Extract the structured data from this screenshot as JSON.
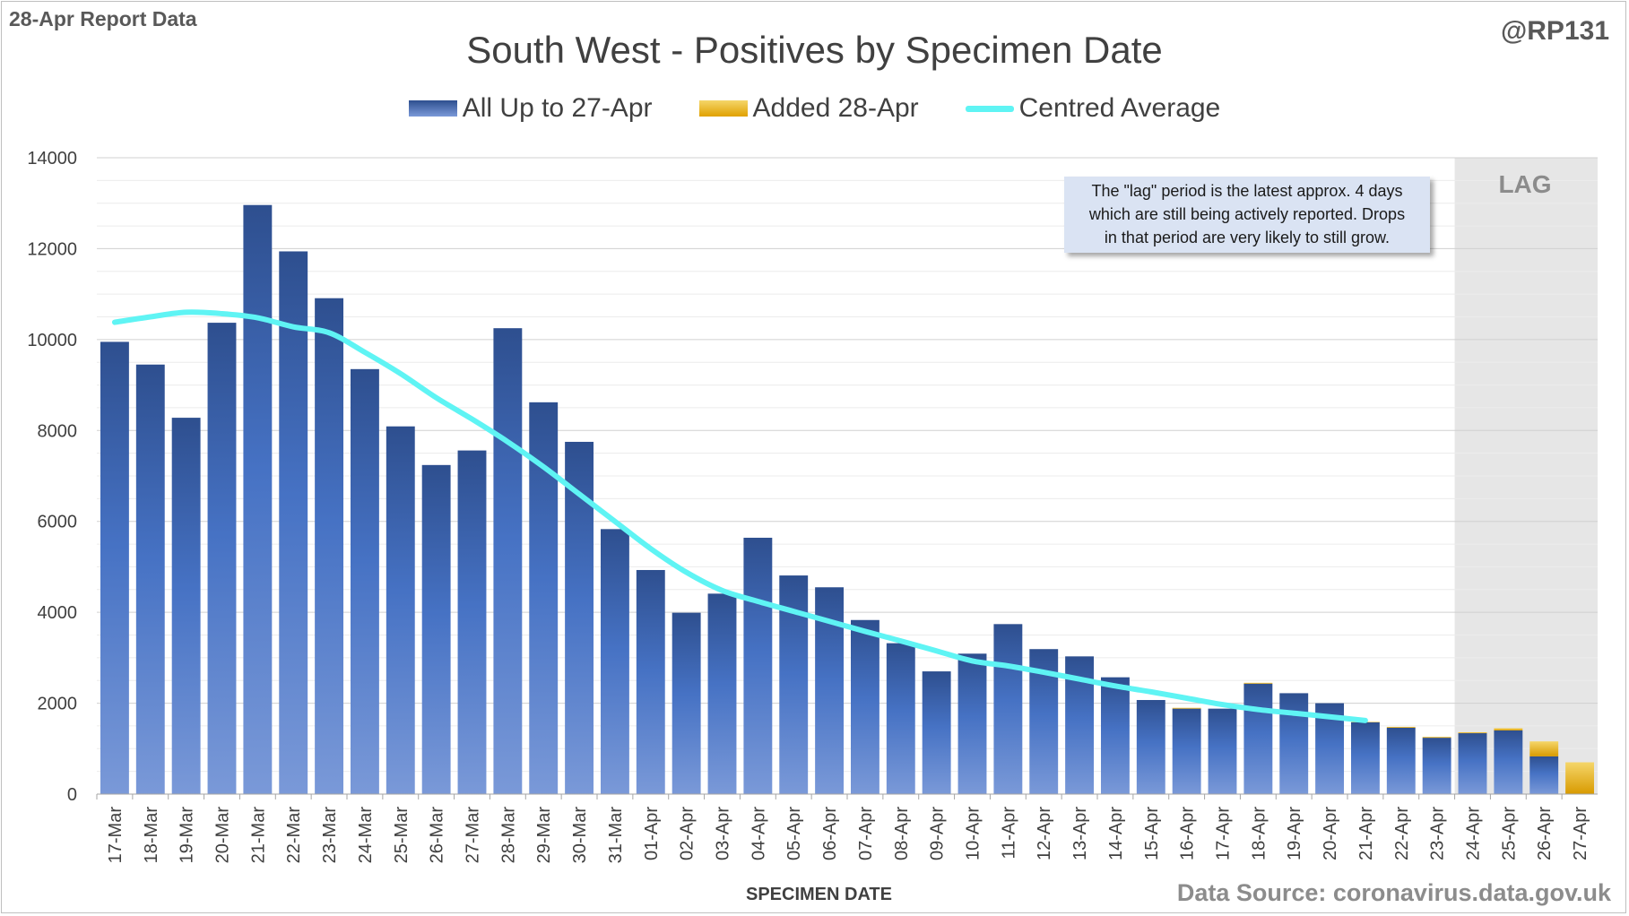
{
  "corner_left": "28-Apr Report Data",
  "corner_right": "@RP131",
  "legend": {
    "item1": "All Up to 27-Apr",
    "item2": "Added 28-Apr",
    "item3": "Centred Average"
  },
  "note": {
    "line1": "The \"lag\" period is the latest approx. 4 days",
    "line2": "which are still being actively reported.  Drops",
    "line3": "in that period are very likely to still grow."
  },
  "lag_label": "LAG",
  "source": "Data Source: coronavirus.data.gov.uk",
  "colors": {
    "bar_base": "#2e4f8f",
    "bar_added": "#e8b400",
    "average_line": "#5ff4f4",
    "lag_shade": "#e6e6e6"
  },
  "chart_data": {
    "type": "bar",
    "title": "South West - Positives by Specimen Date",
    "xlabel": "SPECIMEN DATE",
    "ylabel": "",
    "ylim": [
      0,
      14000
    ],
    "yticks": [
      0,
      2000,
      4000,
      6000,
      8000,
      10000,
      12000,
      14000
    ],
    "grid": true,
    "legend_position": "top",
    "lag_categories": [
      "24-Apr",
      "25-Apr",
      "26-Apr",
      "27-Apr"
    ],
    "categories": [
      "17-Mar",
      "18-Mar",
      "19-Mar",
      "20-Mar",
      "21-Mar",
      "22-Mar",
      "23-Mar",
      "24-Mar",
      "25-Mar",
      "26-Mar",
      "27-Mar",
      "28-Mar",
      "29-Mar",
      "30-Mar",
      "31-Mar",
      "01-Apr",
      "02-Apr",
      "03-Apr",
      "04-Apr",
      "05-Apr",
      "06-Apr",
      "07-Apr",
      "08-Apr",
      "09-Apr",
      "10-Apr",
      "11-Apr",
      "12-Apr",
      "13-Apr",
      "14-Apr",
      "15-Apr",
      "16-Apr",
      "17-Apr",
      "18-Apr",
      "19-Apr",
      "20-Apr",
      "21-Apr",
      "22-Apr",
      "23-Apr",
      "24-Apr",
      "25-Apr",
      "26-Apr",
      "27-Apr"
    ],
    "series": [
      {
        "name": "All Up to 27-Apr",
        "type": "bar",
        "values": [
          9950,
          9450,
          8280,
          10370,
          12960,
          11940,
          10910,
          9350,
          8090,
          7240,
          7560,
          10250,
          8620,
          7750,
          5830,
          4930,
          3990,
          4410,
          5640,
          4810,
          4550,
          3830,
          3320,
          2700,
          3090,
          3740,
          3190,
          3030,
          2570,
          2070,
          1880,
          1880,
          2430,
          2220,
          2000,
          1580,
          1460,
          1240,
          1340,
          1400,
          830,
          0
        ]
      },
      {
        "name": "Added 28-Apr",
        "type": "bar",
        "values": [
          0,
          0,
          0,
          0,
          0,
          0,
          0,
          0,
          0,
          0,
          0,
          0,
          0,
          0,
          0,
          0,
          0,
          0,
          0,
          0,
          0,
          0,
          0,
          0,
          0,
          0,
          0,
          0,
          0,
          0,
          20,
          0,
          20,
          0,
          0,
          10,
          20,
          20,
          20,
          50,
          330,
          700
        ]
      },
      {
        "name": "Centred Average",
        "type": "line",
        "values": [
          10380,
          10500,
          10600,
          10570,
          10480,
          10280,
          10150,
          9720,
          9250,
          8720,
          8250,
          7750,
          7200,
          6600,
          6000,
          5400,
          4880,
          4480,
          4240,
          4020,
          3800,
          3580,
          3370,
          3150,
          2930,
          2820,
          2680,
          2530,
          2380,
          2250,
          2110,
          1970,
          1860,
          1780,
          1700,
          1620,
          null,
          null,
          null,
          null,
          null,
          null
        ]
      }
    ]
  }
}
